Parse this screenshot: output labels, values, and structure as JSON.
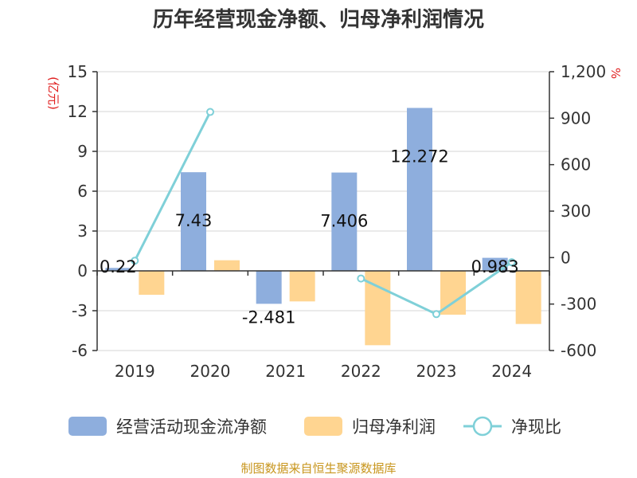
{
  "chart_data": {
    "type": "bar+line",
    "title": "历年经营现金净额、归母净利润情况",
    "categories": [
      "2019",
      "2020",
      "2021",
      "2022",
      "2023",
      "2024"
    ],
    "series": [
      {
        "name": "经营活动现金流净额",
        "type": "bar",
        "axis": "left",
        "color": "#8eaedd",
        "values": [
          0.22,
          7.43,
          -2.481,
          7.406,
          12.272,
          0.983
        ]
      },
      {
        "name": "归母净利润",
        "type": "bar",
        "axis": "left",
        "color": "#ffd591",
        "values": [
          -1.8,
          0.8,
          -2.3,
          -5.6,
          -3.3,
          -4.0
        ]
      },
      {
        "name": "净现比",
        "type": "line",
        "axis": "right",
        "color": "#7fd0d8",
        "values": [
          -20,
          940,
          null,
          -135,
          -365,
          -30
        ]
      }
    ],
    "data_labels": [
      "0.22",
      "7.43",
      "-2.481",
      "7.406",
      "12.272",
      "0.983"
    ],
    "left_axis": {
      "label": "(亿元)",
      "ylim": [
        -6,
        15
      ],
      "ticks": [
        "15",
        "12",
        "9",
        "6",
        "3",
        "0",
        "-3",
        "-6"
      ],
      "tick_values": [
        15,
        12,
        9,
        6,
        3,
        0,
        -3,
        -6
      ]
    },
    "right_axis": {
      "label": "%",
      "ylim": [
        -600,
        1200
      ],
      "ticks": [
        "1,200",
        "900",
        "600",
        "300",
        "0",
        "-300",
        "-600"
      ],
      "tick_values": [
        1200,
        900,
        600,
        300,
        0,
        -300,
        -600
      ]
    },
    "grid": true,
    "legend_position": "bottom"
  },
  "legend": [
    "经营活动现金流净额",
    "归母净利润",
    "净现比"
  ],
  "source": "制图数据来自恒生聚源数据库"
}
